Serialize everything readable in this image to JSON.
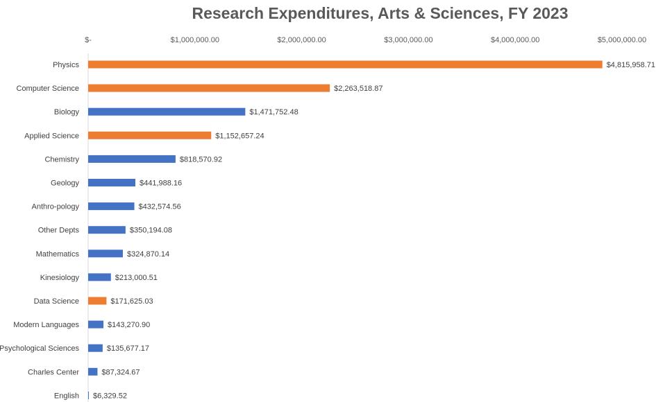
{
  "chart_data": {
    "type": "bar",
    "orientation": "horizontal",
    "title": "Research Expenditures, Arts & Sciences, FY 2023",
    "xlabel": "",
    "ylabel": "",
    "xlim": [
      0,
      5000000
    ],
    "x_ticks": [
      0,
      1000000,
      2000000,
      3000000,
      4000000,
      5000000
    ],
    "x_tick_labels": [
      "$-",
      "$1,000,000.00",
      "$2,000,000.00",
      "$3,000,000.00",
      "$4,000,000.00",
      "$5,000,000.00"
    ],
    "axis_position": "top",
    "grid": false,
    "legend": "none",
    "colors": {
      "orange": "#ED7D31",
      "blue": "#4472C4"
    },
    "categories": [
      "Physics",
      "Computer Science",
      "Biology",
      "Applied Science",
      "Chemistry",
      "Geology",
      "Anthro-pology",
      "Other Depts",
      "Mathematics",
      "Kinesiology",
      "Data Science",
      "Modern Languages",
      "Psychological Sciences",
      "Charles Center",
      "English"
    ],
    "values": [
      4815958.71,
      2263518.87,
      1471752.48,
      1152657.24,
      818570.92,
      441988.16,
      432574.56,
      350194.08,
      324870.14,
      213000.51,
      171625.03,
      143270.9,
      135677.17,
      87324.67,
      6329.52
    ],
    "value_labels": [
      "$4,815,958.71",
      "$2,263,518.87",
      "$1,471,752.48",
      "$1,152,657.24",
      "$818,570.92",
      "$441,988.16",
      "$432,574.56",
      "$350,194.08",
      "$324,870.14",
      "$213,000.51",
      "$171,625.03",
      "$143,270.90",
      "$135,677.17",
      "$87,324.67",
      "$6,329.52"
    ],
    "bar_colors": [
      "#ED7D31",
      "#ED7D31",
      "#4472C4",
      "#ED7D31",
      "#4472C4",
      "#4472C4",
      "#4472C4",
      "#4472C4",
      "#4472C4",
      "#4472C4",
      "#ED7D31",
      "#4472C4",
      "#4472C4",
      "#4472C4",
      "#4472C4"
    ]
  }
}
